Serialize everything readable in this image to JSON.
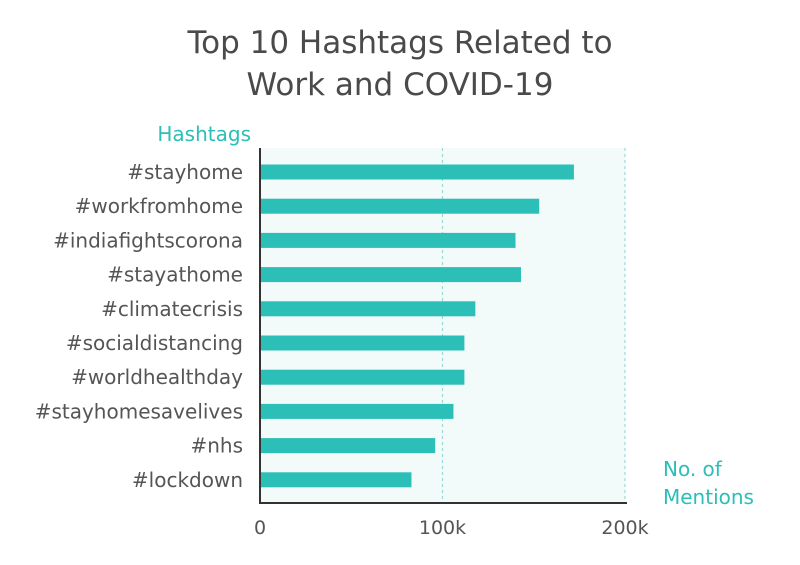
{
  "colors": {
    "bar": "#2bbfb8",
    "plot_bg": "#f2fbfa",
    "axis": "#333333",
    "grid": "#9fd9d5",
    "title": "#4a4a4a",
    "accent_text": "#2bbfb8"
  },
  "chart_data": {
    "type": "bar",
    "orientation": "horizontal",
    "title_lines": [
      "Top 10 Hashtags Related to",
      "Work and COVID-19"
    ],
    "ylabel": "Hashtags",
    "xlabel_lines": [
      "No. of",
      "Mentions"
    ],
    "categories": [
      "#stayhome",
      "#workfromhome",
      "#indiafightscorona",
      "#stayathome",
      "#climatecrisis",
      "#socialdistancing",
      "#worldhealthday",
      "#stayhomesavelives",
      "#nhs",
      "#lockdown"
    ],
    "values": [
      172000,
      153000,
      140000,
      143000,
      118000,
      112000,
      112000,
      106000,
      96000,
      83000
    ],
    "xlim": [
      0,
      200000
    ],
    "xticks": [
      0,
      100000,
      200000
    ],
    "xtick_labels": [
      "0",
      "100k",
      "200k"
    ],
    "grid": "vertical dashed"
  }
}
